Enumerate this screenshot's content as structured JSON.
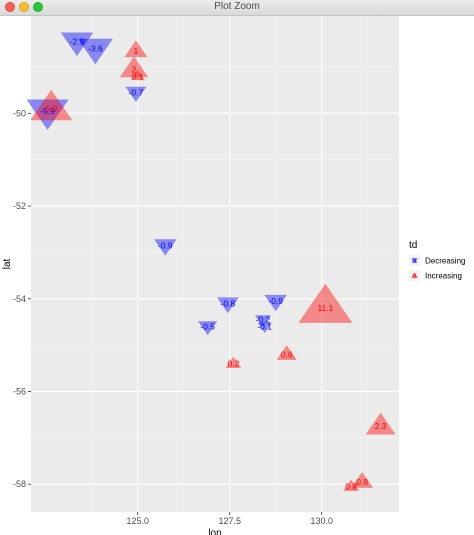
{
  "window": {
    "title": "Plot Zoom"
  },
  "chart_data": {
    "type": "scatter",
    "xlabel": "lon",
    "ylabel": "lat",
    "xlim": [
      122.1,
      132.1
    ],
    "ylim": [
      -58.6,
      -47.9
    ],
    "x_ticks": [
      125.0,
      127.5,
      130.0
    ],
    "x_tick_labels": [
      "125.0",
      "127.5",
      "130.0"
    ],
    "y_ticks": [
      -50,
      -52,
      -54,
      -56,
      -58
    ],
    "y_tick_labels": [
      "-50",
      "-52",
      "-54",
      "-56",
      "-58"
    ],
    "grid": true,
    "legend": {
      "title": "td",
      "placement": "right",
      "entries": [
        {
          "label": "Decreasing",
          "color": "#0000ff",
          "shape": "triangle-down"
        },
        {
          "label": "Increasing",
          "color": "#ff0000",
          "shape": "triangle-up"
        }
      ]
    },
    "colors": {
      "Decreasing": "#0000ff",
      "Increasing": "#ff0000",
      "panel": "#ebebeb",
      "grid": "#ffffff"
    },
    "points": [
      {
        "lon": 123.35,
        "lat": -48.45,
        "label": "-2.9",
        "td": "Decreasing",
        "size": 2.9
      },
      {
        "lon": 123.85,
        "lat": -48.6,
        "label": "-3.6",
        "td": "Decreasing",
        "size": 3.6
      },
      {
        "lon": 122.55,
        "lat": -49.95,
        "label": "-5.9",
        "td": "Decreasing",
        "size": 5.9
      },
      {
        "lon": 124.95,
        "lat": -49.55,
        "label": "-0.7",
        "td": "Decreasing",
        "size": 0.7
      },
      {
        "lon": 125.75,
        "lat": -52.85,
        "label": "-0.9",
        "td": "Decreasing",
        "size": 0.9
      },
      {
        "lon": 127.45,
        "lat": -54.1,
        "label": "-0.8",
        "td": "Decreasing",
        "size": 0.8
      },
      {
        "lon": 128.75,
        "lat": -54.05,
        "label": "-0.9",
        "td": "Decreasing",
        "size": 0.9
      },
      {
        "lon": 128.4,
        "lat": -54.45,
        "label": "-0.2",
        "td": "Decreasing",
        "size": 0.2
      },
      {
        "lon": 128.45,
        "lat": -54.6,
        "label": "-0.1",
        "td": "Decreasing",
        "size": 0.1
      },
      {
        "lon": 126.9,
        "lat": -54.6,
        "label": "-0.5",
        "td": "Decreasing",
        "size": 0.5
      },
      {
        "lon": 124.95,
        "lat": -48.65,
        "label": "1",
        "td": "Increasing",
        "size": 1.0
      },
      {
        "lon": 124.9,
        "lat": -49.05,
        "label": "2",
        "td": "Increasing",
        "size": 2.0
      },
      {
        "lon": 125.0,
        "lat": -49.2,
        "label": "0.1",
        "td": "Increasing",
        "size": 0.1
      },
      {
        "lon": 122.65,
        "lat": -49.9,
        "label": "5.9",
        "td": "Increasing",
        "size": 5.9
      },
      {
        "lon": 130.1,
        "lat": -54.2,
        "label": "11.1",
        "td": "Increasing",
        "size": 11.1
      },
      {
        "lon": 129.05,
        "lat": -55.2,
        "label": "0.6",
        "td": "Increasing",
        "size": 0.6
      },
      {
        "lon": 127.6,
        "lat": -55.4,
        "label": "0.2",
        "td": "Increasing",
        "size": 0.2
      },
      {
        "lon": 131.6,
        "lat": -56.75,
        "label": "2.3",
        "td": "Increasing",
        "size": 2.3
      },
      {
        "lon": 131.1,
        "lat": -57.95,
        "label": "0.8",
        "td": "Increasing",
        "size": 0.8
      },
      {
        "lon": 130.8,
        "lat": -58.05,
        "label": "0.2",
        "td": "Increasing",
        "size": 0.2
      }
    ]
  }
}
